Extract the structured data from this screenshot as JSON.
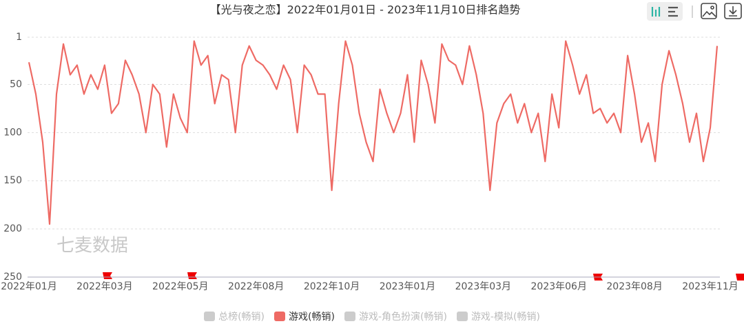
{
  "chart_data": {
    "type": "line",
    "title": "【光与夜之恋】2022年01月01日 - 2023年11月10日排名趋势",
    "watermark": "七麦数据",
    "categories": [
      "2022年01月",
      null,
      null,
      null,
      null,
      null,
      null,
      null,
      null,
      null,
      null,
      "2022年03月",
      null,
      null,
      null,
      null,
      null,
      null,
      null,
      null,
      null,
      null,
      "2022年05月",
      null,
      null,
      null,
      null,
      null,
      null,
      null,
      null,
      null,
      null,
      "2022年08月",
      null,
      null,
      null,
      null,
      null,
      null,
      null,
      null,
      null,
      null,
      "2022年10月",
      null,
      null,
      null,
      null,
      null,
      null,
      null,
      null,
      null,
      null,
      "2023年01月",
      null,
      null,
      null,
      null,
      null,
      null,
      null,
      null,
      null,
      null,
      "2023年03月",
      null,
      null,
      null,
      null,
      null,
      null,
      null,
      null,
      null,
      null,
      "2023年06月",
      null,
      null,
      null,
      null,
      null,
      null,
      null,
      null,
      null,
      null,
      "2023年08月",
      null,
      null,
      null,
      null,
      null,
      null,
      null,
      null,
      null,
      null,
      "2023年11月",
      null
    ],
    "series": [
      {
        "name": "游戏(畅销)",
        "color": "#ee6a64",
        "values": [
          27,
          60,
          110,
          195,
          60,
          8,
          40,
          30,
          60,
          40,
          55,
          30,
          80,
          70,
          25,
          40,
          60,
          100,
          50,
          60,
          115,
          60,
          85,
          100,
          5,
          30,
          20,
          70,
          40,
          45,
          100,
          30,
          10,
          25,
          30,
          40,
          55,
          30,
          45,
          100,
          30,
          40,
          60,
          60,
          160,
          70,
          5,
          30,
          80,
          110,
          130,
          55,
          80,
          100,
          80,
          40,
          110,
          25,
          50,
          90,
          8,
          25,
          30,
          50,
          10,
          40,
          80,
          160,
          90,
          70,
          60,
          90,
          70,
          100,
          80,
          130,
          60,
          95,
          5,
          30,
          60,
          40,
          80,
          75,
          90,
          80,
          100,
          20,
          60,
          110,
          90,
          130,
          50,
          15,
          40,
          70,
          110,
          80,
          130,
          95,
          10
        ]
      }
    ],
    "hidden_series": [
      "总榜(畅销)",
      "游戏-角色扮演(畅销)",
      "游戏-模拟(畅销)"
    ],
    "hidden_color": "#cccccc",
    "ylim": [
      1,
      250
    ],
    "y_inverse": true,
    "yticks": [
      1,
      50,
      100,
      150,
      200,
      250
    ],
    "grid": true
  }
}
